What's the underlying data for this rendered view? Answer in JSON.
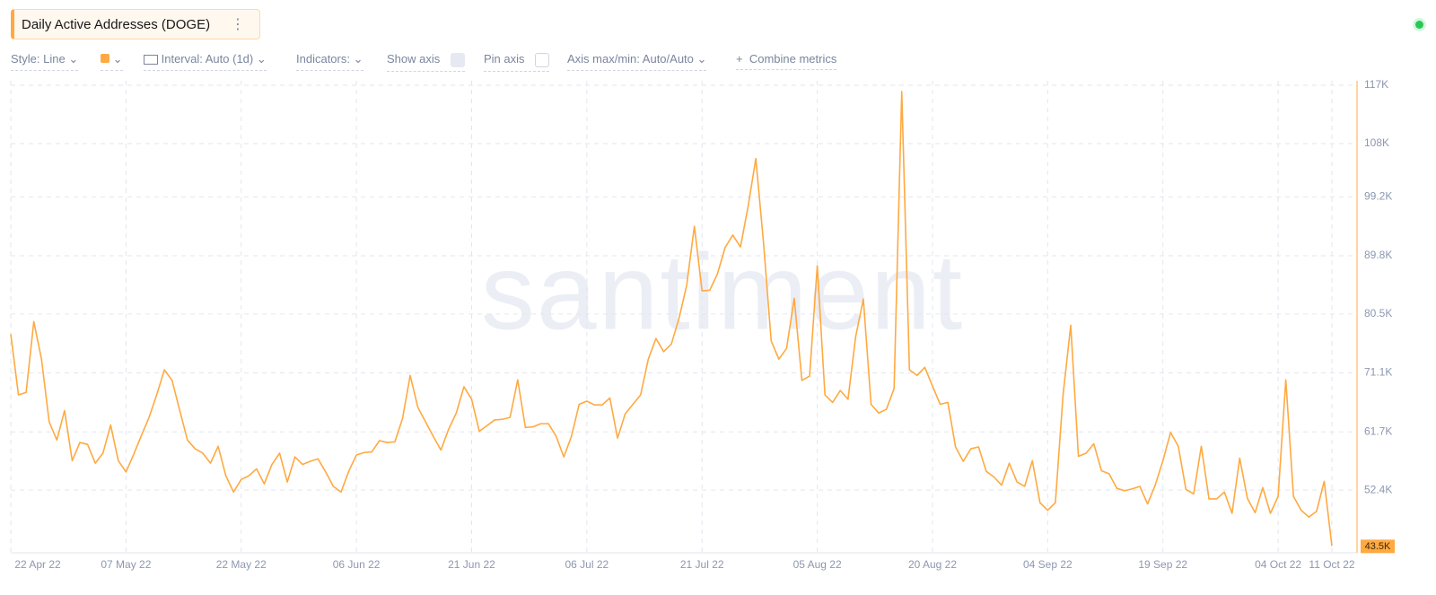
{
  "header": {
    "title": "Daily Active Addresses (DOGE)"
  },
  "toolbar": [
    "Style: Line",
    "Interval: Auto (1d)",
    "Indicators:",
    "Show axis",
    "Pin axis",
    "Axis max/min: Auto/Auto",
    "Combine metrics"
  ],
  "watermark": "santiment",
  "chart_data": {
    "type": "line",
    "color": "#ffa940",
    "grid": true,
    "x": [
      "2022-04-22",
      "2022-04-23",
      "2022-04-24",
      "2022-04-25",
      "2022-04-26",
      "2022-04-27",
      "2022-04-28",
      "2022-04-29",
      "2022-04-30",
      "2022-05-01",
      "2022-05-02",
      "2022-05-03",
      "2022-05-04",
      "2022-05-05",
      "2022-05-06",
      "2022-05-07",
      "2022-05-08",
      "2022-05-09",
      "2022-05-10",
      "2022-05-11",
      "2022-05-12",
      "2022-05-13",
      "2022-05-14",
      "2022-05-15",
      "2022-05-16",
      "2022-05-17",
      "2022-05-18",
      "2022-05-19",
      "2022-05-20",
      "2022-05-21",
      "2022-05-22",
      "2022-05-23",
      "2022-05-24",
      "2022-05-25",
      "2022-05-26",
      "2022-05-27",
      "2022-05-28",
      "2022-05-29",
      "2022-05-30",
      "2022-05-31",
      "2022-06-01",
      "2022-06-02",
      "2022-06-03",
      "2022-06-04",
      "2022-06-05",
      "2022-06-06",
      "2022-06-07",
      "2022-06-08",
      "2022-06-09",
      "2022-06-10",
      "2022-06-11",
      "2022-06-12",
      "2022-06-13",
      "2022-06-14",
      "2022-06-15",
      "2022-06-16",
      "2022-06-17",
      "2022-06-18",
      "2022-06-19",
      "2022-06-20",
      "2022-06-21",
      "2022-06-22",
      "2022-06-23",
      "2022-06-24",
      "2022-06-25",
      "2022-06-26",
      "2022-06-27",
      "2022-06-28",
      "2022-06-29",
      "2022-06-30",
      "2022-07-01",
      "2022-07-02",
      "2022-07-03",
      "2022-07-04",
      "2022-07-05",
      "2022-07-06",
      "2022-07-07",
      "2022-07-08",
      "2022-07-09",
      "2022-07-10",
      "2022-07-11",
      "2022-07-12",
      "2022-07-13",
      "2022-07-14",
      "2022-07-15",
      "2022-07-16",
      "2022-07-17",
      "2022-07-18",
      "2022-07-19",
      "2022-07-20",
      "2022-07-21",
      "2022-07-22",
      "2022-07-23",
      "2022-07-24",
      "2022-07-25",
      "2022-07-26",
      "2022-07-27",
      "2022-07-28",
      "2022-07-29",
      "2022-07-30",
      "2022-07-31",
      "2022-08-01",
      "2022-08-02",
      "2022-08-03",
      "2022-08-04",
      "2022-08-05",
      "2022-08-06",
      "2022-08-07",
      "2022-08-08",
      "2022-08-09",
      "2022-08-10",
      "2022-08-11",
      "2022-08-12",
      "2022-08-13",
      "2022-08-14",
      "2022-08-15",
      "2022-08-16",
      "2022-08-17",
      "2022-08-18",
      "2022-08-19",
      "2022-08-20",
      "2022-08-21",
      "2022-08-22",
      "2022-08-23",
      "2022-08-24",
      "2022-08-25",
      "2022-08-26",
      "2022-08-27",
      "2022-08-28",
      "2022-08-29",
      "2022-08-30",
      "2022-08-31",
      "2022-09-01",
      "2022-09-02",
      "2022-09-03",
      "2022-09-04",
      "2022-09-05",
      "2022-09-06",
      "2022-09-07",
      "2022-09-08",
      "2022-09-09",
      "2022-09-10",
      "2022-09-11",
      "2022-09-12",
      "2022-09-13",
      "2022-09-14",
      "2022-09-15",
      "2022-09-16",
      "2022-09-17",
      "2022-09-18",
      "2022-09-19",
      "2022-09-20",
      "2022-09-21",
      "2022-09-22",
      "2022-09-23",
      "2022-09-24",
      "2022-09-25",
      "2022-09-26",
      "2022-09-27",
      "2022-09-28",
      "2022-09-29",
      "2022-09-30",
      "2022-10-01",
      "2022-10-02",
      "2022-10-03",
      "2022-10-04",
      "2022-10-05",
      "2022-10-06",
      "2022-10-07",
      "2022-10-08",
      "2022-10-09",
      "2022-10-10",
      "2022-10-11"
    ],
    "values": [
      77300,
      67600,
      68000,
      79300,
      73300,
      63300,
      60400,
      65100,
      57100,
      60000,
      59700,
      56700,
      58300,
      62800,
      57100,
      55300,
      58100,
      61100,
      64000,
      67600,
      71600,
      69900,
      65100,
      60400,
      59000,
      58300,
      56700,
      59400,
      54700,
      52100,
      54100,
      54700,
      55800,
      53400,
      56500,
      58300,
      53700,
      57700,
      56500,
      57000,
      57400,
      55300,
      53000,
      52100,
      55400,
      58000,
      58400,
      58500,
      60300,
      60000,
      60100,
      63800,
      70700,
      65600,
      63300,
      61000,
      58800,
      62100,
      64700,
      68900,
      66900,
      61800,
      62700,
      63600,
      63700,
      64000,
      70000,
      62400,
      62500,
      63000,
      63000,
      61000,
      57700,
      61000,
      66100,
      66600,
      66000,
      66000,
      67100,
      60700,
      64600,
      66100,
      67600,
      73300,
      76600,
      74500,
      75700,
      79800,
      85100,
      94500,
      84200,
      84300,
      86900,
      91100,
      93100,
      91200,
      97700,
      105300,
      91900,
      76200,
      73300,
      75000,
      83000,
      69900,
      70600,
      88200,
      67600,
      66400,
      68300,
      66900,
      76900,
      82900,
      66100,
      64700,
      65300,
      68600,
      116000,
      71600,
      70700,
      72000,
      69000,
      66100,
      66400,
      59300,
      57000,
      59000,
      59300,
      55400,
      54500,
      53200,
      56700,
      53700,
      53000,
      57100,
      50400,
      49200,
      50400,
      67600,
      78700,
      57800,
      58300,
      59800,
      55500,
      55000,
      52700,
      52300,
      52600,
      53000,
      50200,
      53200,
      57100,
      61600,
      59400,
      52500,
      51800,
      59400,
      51000,
      51000,
      52100,
      48700,
      57500,
      51100,
      48800,
      52800,
      48700,
      51400,
      70000,
      51400,
      49200,
      48100,
      49000,
      53800,
      43500
    ],
    "xlim": [
      "2022-04-22",
      "2022-10-11"
    ],
    "xticks": [
      {
        "value": "2022-04-22",
        "label": "22 Apr 22"
      },
      {
        "value": "2022-05-07",
        "label": "07 May 22"
      },
      {
        "value": "2022-05-22",
        "label": "22 May 22"
      },
      {
        "value": "2022-06-06",
        "label": "06 Jun 22"
      },
      {
        "value": "2022-06-21",
        "label": "21 Jun 22"
      },
      {
        "value": "2022-07-06",
        "label": "06 Jul 22"
      },
      {
        "value": "2022-07-21",
        "label": "21 Jul 22"
      },
      {
        "value": "2022-08-05",
        "label": "05 Aug 22"
      },
      {
        "value": "2022-08-20",
        "label": "20 Aug 22"
      },
      {
        "value": "2022-09-04",
        "label": "04 Sep 22"
      },
      {
        "value": "2022-09-19",
        "label": "19 Sep 22"
      },
      {
        "value": "2022-10-04",
        "label": "04 Oct 22"
      },
      {
        "value": "2022-10-11",
        "label": "11 Oct 22"
      }
    ],
    "ylim": [
      42400,
      117000
    ],
    "yticks": [
      {
        "value": 117000,
        "label": "117K"
      },
      {
        "value": 107700,
        "label": "108K"
      },
      {
        "value": 99200,
        "label": "99.2K"
      },
      {
        "value": 89800,
        "label": "89.8K"
      },
      {
        "value": 80500,
        "label": "80.5K"
      },
      {
        "value": 71100,
        "label": "71.1K"
      },
      {
        "value": 61700,
        "label": "61.7K"
      },
      {
        "value": 52400,
        "label": "52.4K"
      }
    ],
    "current_value": {
      "value": 43500,
      "label": "43.5K"
    }
  }
}
